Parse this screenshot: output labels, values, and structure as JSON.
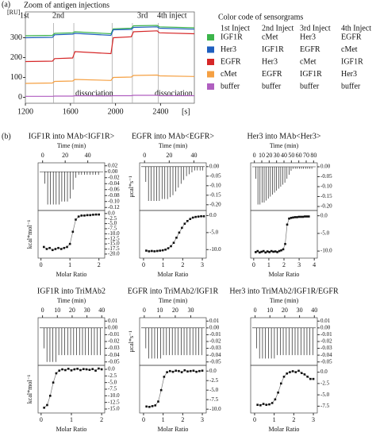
{
  "chart_data": [
    {
      "type": "line",
      "panel_label": "(a)",
      "title": "Zoom of antigen injections",
      "ylabel": "[RU]",
      "xlabel": "[s]",
      "annotations": [
        "1st",
        "2nd",
        "3rd",
        "4th inject"
      ],
      "dissociation_labels": [
        "dissociation",
        "dissociation"
      ],
      "injection_times": [
        1450,
        1630,
        1970,
        2150,
        2380
      ],
      "x": [
        1200,
        1440,
        1460,
        1620,
        1640,
        1960,
        1980,
        2140,
        2160,
        2370,
        2390,
        2700
      ],
      "series": [
        {
          "color": "#3cb44b",
          "values": [
            310,
            312,
            322,
            325,
            330,
            320,
            345,
            348,
            360,
            362,
            355,
            350
          ]
        },
        {
          "color": "#1f5fbf",
          "values": [
            300,
            302,
            315,
            318,
            322,
            312,
            340,
            342,
            352,
            355,
            348,
            343
          ]
        },
        {
          "color": "#d62728",
          "values": [
            180,
            182,
            195,
            198,
            230,
            220,
            300,
            305,
            330,
            335,
            325,
            320
          ]
        },
        {
          "color": "#f5a042",
          "values": [
            70,
            72,
            80,
            82,
            90,
            85,
            100,
            102,
            110,
            112,
            108,
            105
          ]
        },
        {
          "color": "#b05fc0",
          "values": [
            5,
            5,
            6,
            6,
            8,
            7,
            8,
            8,
            10,
            10,
            8,
            8
          ]
        }
      ],
      "xlim": [
        1200,
        2700
      ],
      "ylim": [
        -30,
        430
      ],
      "xticks": [
        1200,
        1600,
        2000,
        2400
      ],
      "yticks": [
        0,
        100,
        200,
        300
      ],
      "legend_table": {
        "title": "Color code of sensorgrams",
        "columns": [
          "1st Inject",
          "2nd Inject",
          "3rd Inject",
          "4th Inject"
        ],
        "rows": [
          [
            "IGF1R",
            "cMet",
            "Her3",
            "EGFR"
          ],
          [
            "Her3",
            "IGF1R",
            "EGFR",
            "cMet"
          ],
          [
            "EGFR",
            "Her3",
            "cMet",
            "IGF1R"
          ],
          [
            "cMet",
            "EGFR",
            "IGF1R",
            "Her3"
          ],
          [
            "buffer",
            "buffer",
            "buffer",
            "buffer"
          ]
        ]
      }
    },
    {
      "type": "itc",
      "panel_label": "(b)",
      "title": "IGF1R into MAb<IGF1R>",
      "time_label": "Time (min)",
      "xlabel": "Molar Ratio",
      "ylabel_upper": "μcal*s⁻¹",
      "ylabel_lower": "kcal*mol⁻¹",
      "time": [
        2,
        4.5,
        7,
        9.5,
        12,
        14.5,
        17,
        19.5,
        22,
        24.5,
        27,
        29.5,
        32,
        34.5,
        37,
        39.5,
        42,
        44.5,
        47,
        49.5
      ],
      "peaks": [
        -0.04,
        -0.11,
        -0.11,
        -0.11,
        -0.11,
        -0.11,
        -0.1,
        -0.1,
        -0.1,
        -0.09,
        -0.06,
        -0.02,
        -0.01,
        -0.01,
        -0.01,
        -0.01,
        -0.01,
        -0.01,
        -0.01,
        -0.01
      ],
      "time_lim": [
        -4,
        55
      ],
      "time_ticks": [
        0,
        20,
        40
      ],
      "upper_ylim": [
        -0.13,
        0.03
      ],
      "upper_yticks": [
        0.02,
        {
          "value": 0,
          "label": "0.00"
        },
        -0.02,
        -0.04,
        -0.06,
        -0.08,
        {
          "value": -0.1,
          "label": "-0.10"
        },
        -0.12
      ],
      "ratio": [
        0.1,
        0.2,
        0.3,
        0.4,
        0.5,
        0.6,
        0.7,
        0.8,
        0.9,
        1.0,
        1.1,
        1.2,
        1.3,
        1.4,
        1.5,
        1.6,
        1.7,
        1.8,
        1.9,
        2.0
      ],
      "heat": [
        -16.5,
        -17.5,
        -17,
        -18,
        -17.5,
        -17,
        -17.5,
        -17,
        -16.5,
        -15,
        -9,
        -3,
        -1.5,
        -1,
        -1,
        -0.8,
        -0.8,
        -0.6,
        -0.5,
        -0.5
      ],
      "xlim": [
        -0.1,
        2.2
      ],
      "xticks": [
        0,
        1,
        2
      ],
      "ylim": [
        -22,
        1.5
      ],
      "yticks": [
        {
          "value": 0,
          "label": "0.0"
        },
        -2.5,
        {
          "value": -5,
          "label": "-5.0"
        },
        -7.5,
        {
          "value": -10,
          "label": "-10.0"
        },
        -12.5,
        {
          "value": -15,
          "label": "-15.0"
        },
        -17.5,
        {
          "value": -20,
          "label": "-20.0"
        }
      ]
    },
    {
      "type": "itc",
      "title": "EGFR into MAb<EGFR>",
      "time_label": "Time (min)",
      "xlabel": "Molar Ratio",
      "time": [
        1,
        3.2,
        5.4,
        7.6,
        9.8,
        12,
        14.2,
        16.4,
        18.6,
        20.8,
        23,
        25.2,
        27.4,
        29.6,
        31.8,
        34,
        36.2,
        38.4,
        40.6,
        42.8,
        45,
        47.2
      ],
      "peaks": [
        -0.08,
        -0.18,
        -0.18,
        -0.18,
        -0.18,
        -0.18,
        -0.17,
        -0.17,
        -0.17,
        -0.16,
        -0.15,
        -0.13,
        -0.11,
        -0.09,
        -0.07,
        -0.05,
        -0.04,
        -0.03,
        -0.02,
        -0.02,
        -0.02,
        -0.02
      ],
      "time_lim": [
        -4,
        50
      ],
      "time_ticks": [
        0,
        20,
        40
      ],
      "upper_ylim": [
        -0.23,
        0.02
      ],
      "upper_yticks": [
        {
          "value": 0,
          "label": "0.00"
        },
        -0.05,
        {
          "value": -0.1,
          "label": "-0.10"
        },
        -0.15,
        {
          "value": -0.2,
          "label": "-0.20"
        }
      ],
      "ratio": [
        0.14,
        0.28,
        0.42,
        0.56,
        0.7,
        0.84,
        0.98,
        1.12,
        1.26,
        1.4,
        1.54,
        1.68,
        1.82,
        1.96,
        2.1,
        2.24,
        2.38,
        2.52,
        2.66,
        2.8,
        2.94,
        3.08
      ],
      "heat": [
        -10.3,
        -10.5,
        -10.4,
        -10.5,
        -10.4,
        -10.3,
        -10.2,
        -10,
        -9.6,
        -9,
        -8,
        -6.5,
        -5,
        -3.6,
        -2.4,
        -1.6,
        -1,
        -0.6,
        -0.4,
        -0.3,
        -0.2,
        -0.2
      ],
      "xlim": [
        -0.2,
        3.2
      ],
      "xticks": [
        0,
        1,
        2,
        3
      ],
      "ylim": [
        -12.5,
        1.5
      ],
      "yticks": [
        {
          "value": 0,
          "label": "0.0"
        },
        {
          "value": -5,
          "label": "-5.0"
        },
        {
          "value": -10,
          "label": "-10.0"
        }
      ]
    },
    {
      "type": "itc",
      "title": "Her3 into MAb<Her3>",
      "time_label": "Time (min)",
      "xlabel": "Molar Ratio",
      "time": [
        2,
        4.8,
        7.6,
        10.4,
        13.2,
        16,
        18.8,
        21.6,
        24.4,
        27.2,
        30,
        32.8,
        35.6,
        38.4,
        41.2,
        44,
        46.8,
        49.6,
        52.4,
        55.2,
        58,
        60.8,
        63.6,
        66.4,
        69.2,
        72,
        74.8,
        77.6
      ],
      "peaks": [
        -0.06,
        -0.19,
        -0.19,
        -0.18,
        -0.18,
        -0.17,
        -0.16,
        -0.15,
        -0.14,
        -0.13,
        -0.12,
        -0.11,
        -0.1,
        -0.09,
        -0.08,
        -0.06,
        -0.04,
        -0.02,
        -0.01,
        -0.01,
        -0.01,
        -0.01,
        -0.01,
        -0.01,
        -0.01,
        -0.01,
        -0.01,
        -0.01
      ],
      "time_lim": [
        -5,
        85
      ],
      "time_ticks": [
        0,
        10,
        20,
        30,
        40,
        50,
        60,
        70,
        80
      ],
      "upper_ylim": [
        -0.22,
        0.02
      ],
      "upper_yticks": [
        {
          "value": 0,
          "label": "0.00"
        },
        -0.05,
        {
          "value": -0.1,
          "label": "-0.10"
        },
        -0.15,
        {
          "value": -0.2,
          "label": "-0.20"
        }
      ],
      "ratio": [
        0.13,
        0.26,
        0.39,
        0.52,
        0.65,
        0.78,
        0.91,
        1.04,
        1.17,
        1.3,
        1.43,
        1.56,
        1.69,
        1.82,
        1.95,
        2.08,
        2.21,
        2.34,
        2.47,
        2.6,
        2.73,
        2.86,
        2.99,
        3.12,
        3.25,
        3.38,
        3.51,
        3.64
      ],
      "heat": [
        -10.3,
        -10,
        -10.4,
        -10.2,
        -10,
        -10.4,
        -10.1,
        -10.3,
        -10,
        -10.2,
        -10.1,
        -10.3,
        -10,
        -9.8,
        -9.5,
        -8,
        -2.5,
        -0.8,
        -0.6,
        -0.5,
        -0.4,
        -0.4,
        -0.3,
        -0.3,
        -0.3,
        -0.2,
        -0.2,
        -0.2
      ],
      "xlim": [
        -0.2,
        4.2
      ],
      "xticks": [
        0,
        1,
        2,
        3,
        4
      ],
      "ylim": [
        -12,
        1.5
      ],
      "yticks": [
        {
          "value": 0,
          "label": "0.0"
        },
        {
          "value": -5,
          "label": "-5.0"
        },
        {
          "value": -10,
          "label": "-10.0"
        }
      ]
    },
    {
      "type": "itc",
      "title": "IGF1R into TriMAb2",
      "time_label": "Time (min)",
      "xlabel": "Molar Ratio",
      "ylabel_upper": "μcal*s⁻¹",
      "ylabel_lower": "kcal*mol⁻¹",
      "time": [
        1,
        3,
        5,
        7,
        9,
        11,
        13,
        15,
        17,
        19,
        21,
        23,
        25,
        27,
        29,
        31,
        33,
        35,
        37,
        39
      ],
      "peaks": [
        -0.03,
        -0.05,
        -0.05,
        -0.05,
        -0.05,
        -0.04,
        -0.04,
        -0.04,
        -0.04,
        -0.04,
        -0.04,
        -0.04,
        -0.04,
        -0.04,
        -0.04,
        -0.04,
        -0.04,
        -0.04,
        -0.04,
        -0.04
      ],
      "time_lim": [
        -3,
        42
      ],
      "time_ticks": [
        0,
        10,
        20,
        30,
        40
      ],
      "upper_ylim": [
        -0.055,
        0.015
      ],
      "upper_yticks": [
        0.01,
        {
          "value": 0,
          "label": "0.00"
        },
        -0.01,
        -0.02,
        -0.03,
        -0.04,
        -0.05
      ],
      "ratio": [
        0.1,
        0.2,
        0.3,
        0.4,
        0.5,
        0.6,
        0.7,
        0.8,
        0.9,
        1.0,
        1.1,
        1.2,
        1.3,
        1.4,
        1.5,
        1.6,
        1.7,
        1.8,
        1.9,
        2.0
      ],
      "heat": [
        -14.5,
        -13.5,
        -10,
        -5,
        -1.5,
        -0.5,
        0,
        -0.3,
        0.2,
        -0.4,
        0,
        0.2,
        -0.3,
        0.1,
        0,
        -0.2,
        0.1,
        -0.5,
        0.3,
        0
      ],
      "xlim": [
        -0.1,
        2.1
      ],
      "xticks": [
        0,
        1,
        2
      ],
      "ylim": [
        -16.5,
        1.5
      ],
      "yticks": [
        {
          "value": 0,
          "label": "0.0"
        },
        -2.5,
        {
          "value": -5,
          "label": "-5.0"
        },
        -7.5,
        {
          "value": -10,
          "label": "-10.0"
        },
        -12.5,
        {
          "value": -15,
          "label": "-15.0"
        }
      ]
    },
    {
      "type": "itc",
      "title": "EGFR into TriMAb2/IGF1R",
      "time_label": "Time (min)",
      "xlabel": "Molar Ratio",
      "time": [
        1,
        2.9,
        4.8,
        6.7,
        8.6,
        10.5,
        12.4,
        14.3,
        16.2,
        18.1,
        20,
        21.9,
        23.8,
        25.7,
        27.6,
        29.5,
        31.4,
        33.3,
        35.2,
        37.1
      ],
      "peaks": [
        -0.03,
        -0.045,
        -0.045,
        -0.045,
        -0.045,
        -0.045,
        -0.04,
        -0.04,
        -0.04,
        -0.04,
        -0.04,
        -0.04,
        -0.04,
        -0.04,
        -0.04,
        -0.04,
        -0.04,
        -0.04,
        -0.04,
        -0.04
      ],
      "time_lim": [
        -3,
        40
      ],
      "time_ticks": [
        0,
        10,
        20,
        30
      ],
      "upper_ylim": [
        -0.055,
        0.015
      ],
      "upper_yticks": [
        0.01,
        {
          "value": 0,
          "label": "0.00"
        },
        -0.01,
        -0.02,
        -0.03,
        -0.04,
        -0.05
      ],
      "ratio": [
        0.15,
        0.3,
        0.45,
        0.6,
        0.75,
        0.9,
        1.05,
        1.2,
        1.35,
        1.5,
        1.65,
        1.8,
        1.95,
        2.1,
        2.25,
        2.4,
        2.55,
        2.7,
        2.85,
        3.0
      ],
      "heat": [
        -9.3,
        -9.4,
        -9.2,
        -9,
        -8,
        -5,
        -1.5,
        -0.3,
        0,
        -0.2,
        0.1,
        0,
        -0.3,
        0.2,
        -0.1,
        0,
        0.1,
        -0.2,
        0,
        0.1
      ],
      "xlim": [
        -0.2,
        3.2
      ],
      "xticks": [
        0,
        1,
        2,
        3
      ],
      "ylim": [
        -11,
        1.5
      ],
      "yticks": [
        {
          "value": 0,
          "label": "0.0"
        },
        -2.5,
        {
          "value": -5,
          "label": "-5.0"
        },
        -7.5,
        {
          "value": -10,
          "label": "-10.0"
        }
      ]
    },
    {
      "type": "itc",
      "title": "Her3 into TriMAb2/IGF1R/EGFR",
      "time_label": "Time (min)",
      "xlabel": "Molar Ratio",
      "time": [
        1,
        3,
        5,
        7,
        9,
        11,
        13,
        15,
        17,
        19,
        21,
        23,
        25,
        27,
        29,
        31,
        33,
        35,
        37,
        39
      ],
      "peaks": [
        -0.03,
        -0.045,
        -0.045,
        -0.045,
        -0.045,
        -0.045,
        -0.045,
        -0.04,
        -0.04,
        -0.04,
        -0.04,
        -0.04,
        -0.04,
        -0.04,
        -0.04,
        -0.04,
        -0.04,
        -0.04,
        -0.04,
        -0.04
      ],
      "time_lim": [
        -3,
        42
      ],
      "time_ticks": [
        0,
        10,
        20,
        30,
        40
      ],
      "upper_ylim": [
        -0.055,
        0.015
      ],
      "upper_yticks": [
        0.01,
        {
          "value": 0,
          "label": "0.00"
        },
        -0.01,
        -0.02,
        -0.03,
        -0.04,
        -0.05
      ],
      "ratio": [
        0.15,
        0.3,
        0.45,
        0.6,
        0.75,
        0.9,
        1.05,
        1.2,
        1.35,
        1.5,
        1.65,
        1.8,
        1.95,
        2.1,
        2.25,
        2.4,
        2.55,
        2.7,
        2.85,
        3.0
      ],
      "heat": [
        -7.2,
        -7.3,
        -7,
        -7.2,
        -7.1,
        -6.8,
        -6,
        -4.5,
        -2.5,
        -1,
        -0.3,
        0,
        0.2,
        0,
        0.3,
        -0.2,
        -0.5,
        -1,
        -1.5,
        -1.5
      ],
      "xlim": [
        -0.2,
        3.2
      ],
      "xticks": [
        0,
        1,
        2,
        3
      ],
      "ylim": [
        -9,
        1.5
      ],
      "yticks": [
        {
          "value": 0,
          "label": "0.0"
        },
        -2.5,
        {
          "value": -5,
          "label": "-5.0"
        },
        -7.5
      ]
    }
  ]
}
